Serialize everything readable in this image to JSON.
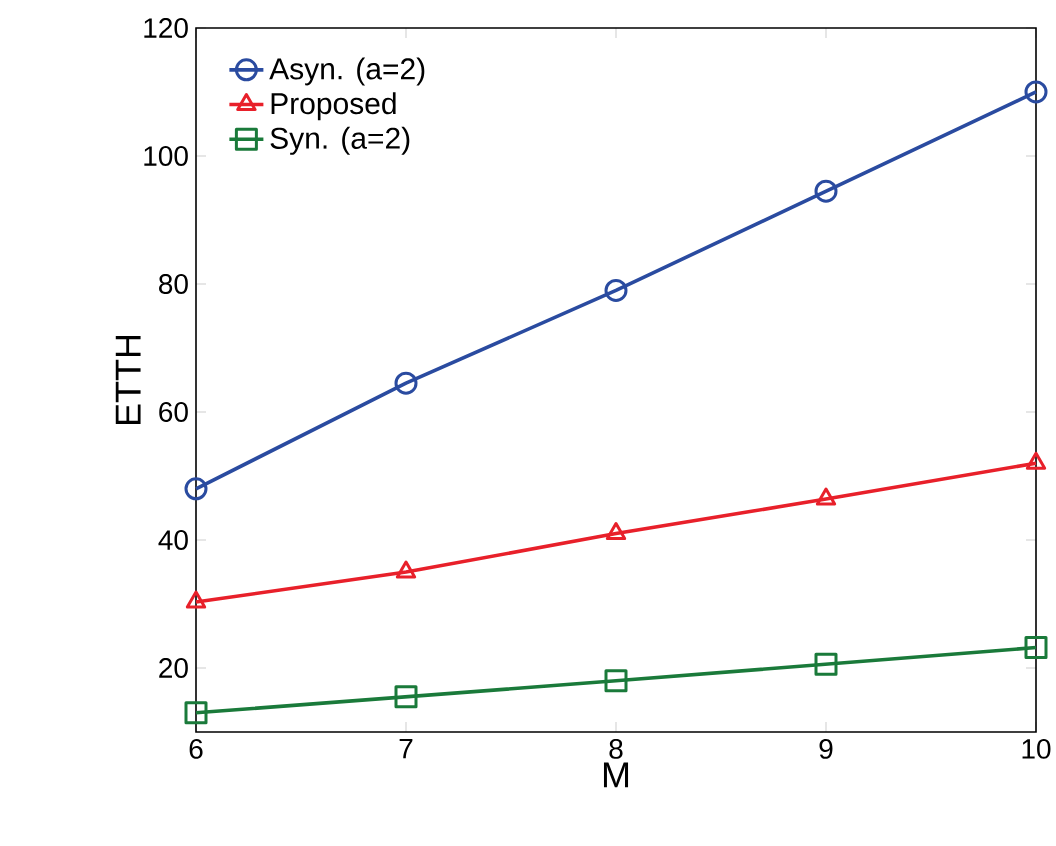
{
  "chart_data": {
    "type": "line",
    "xlabel": "M",
    "ylabel": "ETTH",
    "x": [
      6,
      7,
      8,
      9,
      10
    ],
    "xlim": [
      6,
      10
    ],
    "xticks": [
      6,
      7,
      8,
      9,
      10
    ],
    "ylim": [
      10,
      120
    ],
    "yticks": [
      20,
      40,
      60,
      80,
      100,
      120
    ],
    "legend": "top left",
    "grid": false,
    "line_style": "solid",
    "series": [
      {
        "name": "Asyn. (a=2)",
        "color": "#2a4ba0",
        "marker": "circle",
        "values": [
          48,
          64.5,
          79,
          94.5,
          110
        ]
      },
      {
        "name": "Proposed",
        "color": "#e8202a",
        "marker": "triangle",
        "values": [
          30.3,
          35,
          41,
          46.4,
          52
        ]
      },
      {
        "name": "Syn. (a=2)",
        "color": "#1a7a3a",
        "marker": "square",
        "values": [
          13,
          15.5,
          18,
          20.6,
          23.2
        ]
      }
    ]
  }
}
